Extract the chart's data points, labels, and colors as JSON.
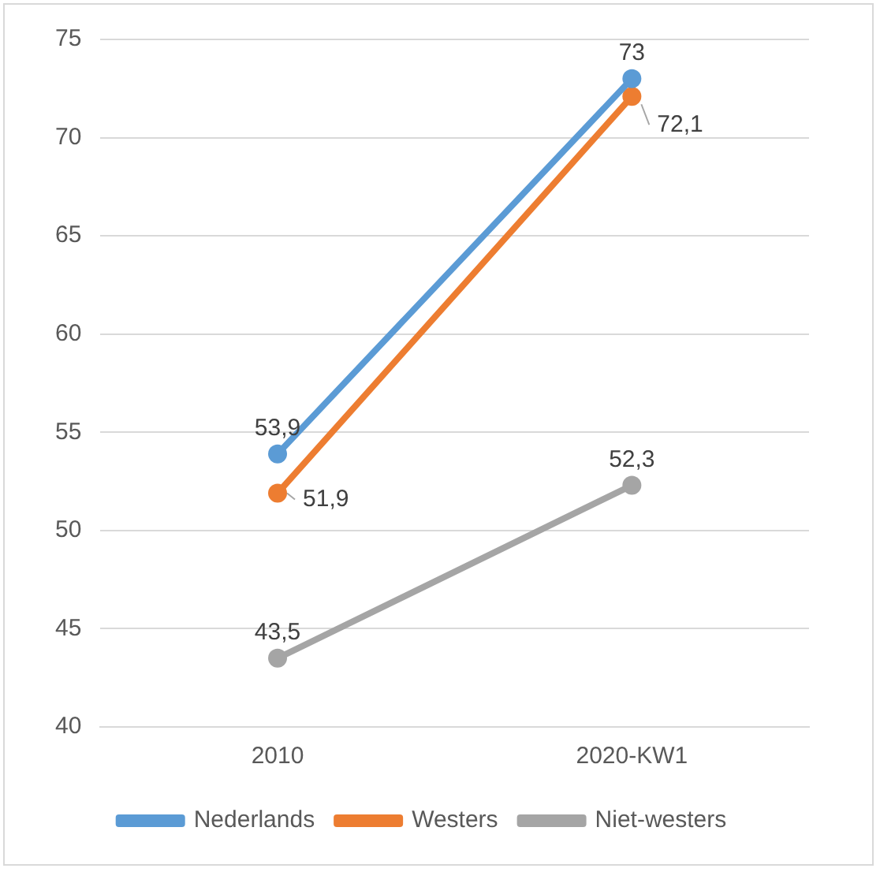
{
  "chart_data": {
    "type": "line",
    "categories": [
      "2010",
      "2020-KW1"
    ],
    "series": [
      {
        "name": "Nederlands",
        "color": "#5b9bd5",
        "values": [
          53.9,
          73
        ],
        "value_labels": [
          "53,9",
          "73"
        ]
      },
      {
        "name": "Westers",
        "color": "#ed7d31",
        "values": [
          51.9,
          72.1
        ],
        "value_labels": [
          "51,9",
          "72,1"
        ]
      },
      {
        "name": "Niet-westers",
        "color": "#a5a5a5",
        "values": [
          43.5,
          52.3
        ],
        "value_labels": [
          "43,5",
          "52,3"
        ]
      }
    ],
    "ylim": [
      40,
      75
    ],
    "yticks": [
      40,
      45,
      50,
      55,
      60,
      65,
      70,
      75
    ],
    "grid": "y",
    "legend": "bottom",
    "marker": "circle",
    "line_style": "solid"
  }
}
